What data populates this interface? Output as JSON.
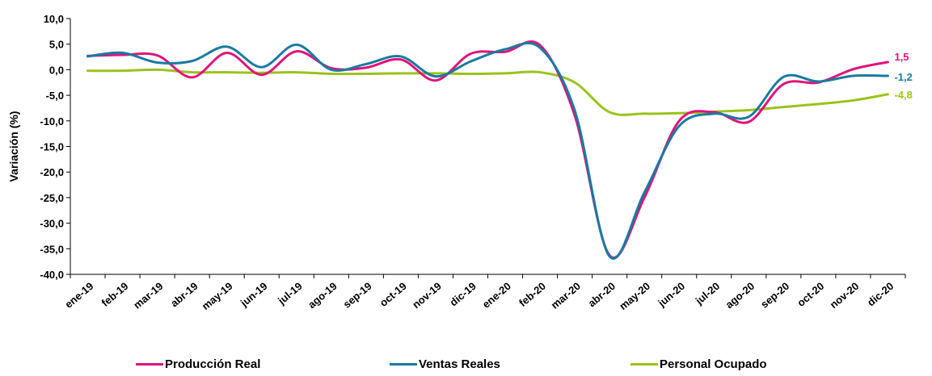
{
  "chart_data": {
    "type": "line",
    "title": "",
    "ylabel": "Variación (%)",
    "xlabel": "",
    "ylim": [
      -40,
      10
    ],
    "yticks": [
      "10,0",
      "5,0",
      "0,0",
      "-5,0",
      "-10,0",
      "-15,0",
      "-20,0",
      "-25,0",
      "-30,0",
      "-35,0",
      "-40,0"
    ],
    "categories": [
      "ene-19",
      "feb-19",
      "mar-19",
      "abr-19",
      "may-19",
      "jun-19",
      "jul-19",
      "ago-19",
      "sep-19",
      "oct-19",
      "nov-19",
      "dic-19",
      "ene-20",
      "feb-20",
      "mar-20",
      "abr-20",
      "may-20",
      "jun-20",
      "jul-20",
      "ago-20",
      "sep-20",
      "oct-20",
      "nov-20",
      "dic-20"
    ],
    "grid": false,
    "legend_position": "bottom",
    "series": [
      {
        "name": "Producción Real",
        "color": "#e0147a",
        "values": [
          2.7,
          2.9,
          2.8,
          -1.5,
          3.3,
          -1.0,
          3.6,
          0.3,
          0.4,
          2.0,
          -2.1,
          3.1,
          3.5,
          4.8,
          -9.0,
          -36.3,
          -25.0,
          -10.0,
          -8.3,
          -10.2,
          -2.8,
          -2.5,
          0.1,
          1.5
        ],
        "end_label": "1,5",
        "end_label_color": "#e0147a"
      },
      {
        "name": "Ventas Reales",
        "color": "#1a7aa0",
        "values": [
          2.6,
          3.3,
          1.4,
          1.7,
          4.5,
          0.5,
          4.9,
          0.0,
          1.1,
          2.6,
          -1.3,
          1.6,
          4.0,
          4.3,
          -8.0,
          -36.5,
          -24.0,
          -11.0,
          -8.6,
          -9.2,
          -1.4,
          -2.3,
          -1.2,
          -1.2
        ],
        "end_label": "-1,2",
        "end_label_color": "#1a7aa0"
      },
      {
        "name": "Personal Ocupado",
        "color": "#9bc21f",
        "values": [
          -0.2,
          -0.2,
          0.0,
          -0.5,
          -0.5,
          -0.6,
          -0.5,
          -0.8,
          -0.8,
          -0.7,
          -0.7,
          -0.8,
          -0.7,
          -0.5,
          -2.5,
          -8.3,
          -8.6,
          -8.5,
          -8.2,
          -7.9,
          -7.3,
          -6.7,
          -6.0,
          -4.8
        ],
        "end_label": "-4,8",
        "end_label_color": "#9bc21f"
      }
    ]
  }
}
